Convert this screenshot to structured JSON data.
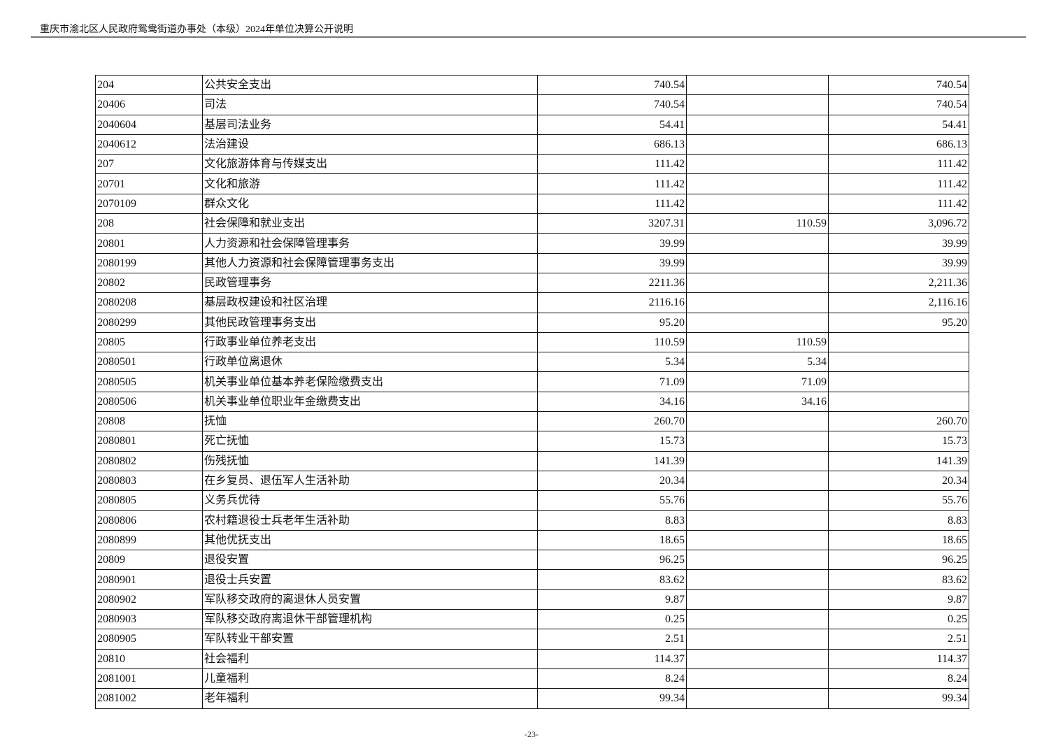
{
  "header": {
    "title": "重庆市渝北区人民政府鸳鸯街道办事处（本级）2024年单位决算公开说明"
  },
  "table": {
    "rows": [
      [
        "204",
        "公共安全支出",
        "740.54",
        "",
        "740.54"
      ],
      [
        "20406",
        "司法",
        "740.54",
        "",
        "740.54"
      ],
      [
        "2040604",
        "基层司法业务",
        "54.41",
        "",
        "54.41"
      ],
      [
        "2040612",
        "法治建设",
        "686.13",
        "",
        "686.13"
      ],
      [
        "207",
        "文化旅游体育与传媒支出",
        "111.42",
        "",
        "111.42"
      ],
      [
        "20701",
        "文化和旅游",
        "111.42",
        "",
        "111.42"
      ],
      [
        "2070109",
        "群众文化",
        "111.42",
        "",
        "111.42"
      ],
      [
        "208",
        "社会保障和就业支出",
        "3207.31",
        "110.59",
        "3,096.72"
      ],
      [
        "20801",
        "人力资源和社会保障管理事务",
        "39.99",
        "",
        "39.99"
      ],
      [
        "2080199",
        "其他人力资源和社会保障管理事务支出",
        "39.99",
        "",
        "39.99"
      ],
      [
        "20802",
        "民政管理事务",
        "2211.36",
        "",
        "2,211.36"
      ],
      [
        "2080208",
        "基层政权建设和社区治理",
        "2116.16",
        "",
        "2,116.16"
      ],
      [
        "2080299",
        "其他民政管理事务支出",
        "95.20",
        "",
        "95.20"
      ],
      [
        "20805",
        "行政事业单位养老支出",
        "110.59",
        "110.59",
        ""
      ],
      [
        "2080501",
        "行政单位离退休",
        "5.34",
        "5.34",
        ""
      ],
      [
        "2080505",
        "机关事业单位基本养老保险缴费支出",
        "71.09",
        "71.09",
        ""
      ],
      [
        "2080506",
        "机关事业单位职业年金缴费支出",
        "34.16",
        "34.16",
        ""
      ],
      [
        "20808",
        "抚恤",
        "260.70",
        "",
        "260.70"
      ],
      [
        "2080801",
        "死亡抚恤",
        "15.73",
        "",
        "15.73"
      ],
      [
        "2080802",
        "伤残抚恤",
        "141.39",
        "",
        "141.39"
      ],
      [
        "2080803",
        "在乡复员、退伍军人生活补助",
        "20.34",
        "",
        "20.34"
      ],
      [
        "2080805",
        "义务兵优待",
        "55.76",
        "",
        "55.76"
      ],
      [
        "2080806",
        "农村籍退役士兵老年生活补助",
        "8.83",
        "",
        "8.83"
      ],
      [
        "2080899",
        "其他优抚支出",
        "18.65",
        "",
        "18.65"
      ],
      [
        "20809",
        "退役安置",
        "96.25",
        "",
        "96.25"
      ],
      [
        "2080901",
        "退役士兵安置",
        "83.62",
        "",
        "83.62"
      ],
      [
        "2080902",
        "军队移交政府的离退休人员安置",
        "9.87",
        "",
        "9.87"
      ],
      [
        "2080903",
        "军队移交政府离退休干部管理机构",
        "0.25",
        "",
        "0.25"
      ],
      [
        "2080905",
        "军队转业干部安置",
        "2.51",
        "",
        "2.51"
      ],
      [
        "20810",
        "社会福利",
        "114.37",
        "",
        "114.37"
      ],
      [
        "2081001",
        "儿童福利",
        "8.24",
        "",
        "8.24"
      ],
      [
        "2081002",
        "老年福利",
        "99.34",
        "",
        "99.34"
      ]
    ]
  },
  "footer": {
    "page_number": "-23-"
  }
}
